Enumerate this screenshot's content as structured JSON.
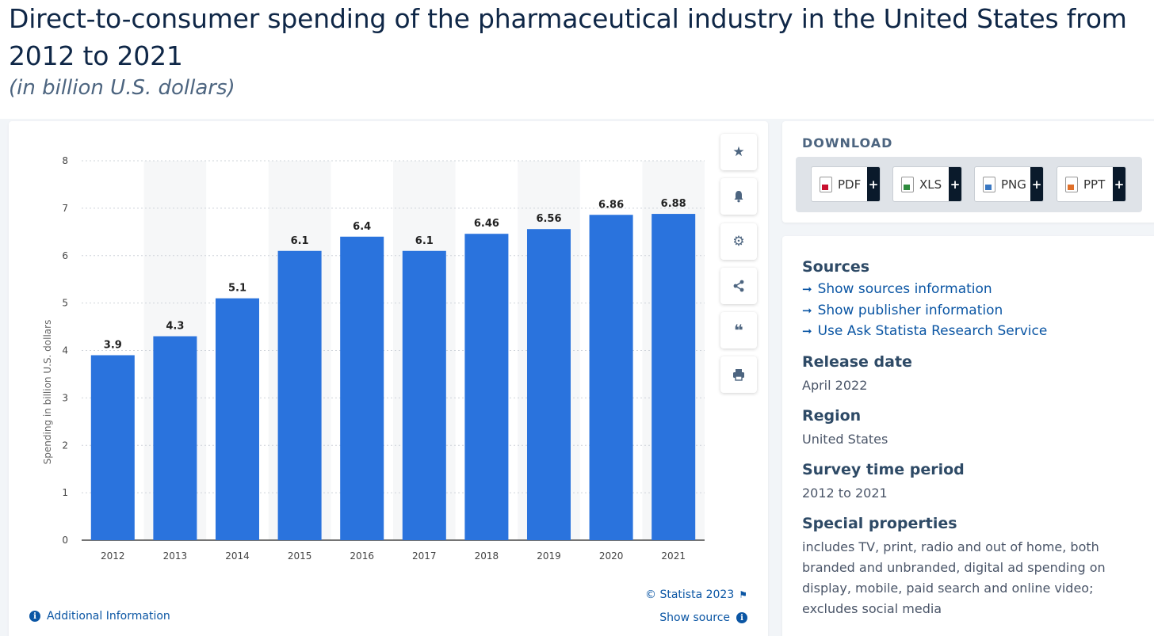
{
  "header": {
    "title": "Direct-to-consumer spending of the pharmaceutical industry in the United States from 2012 to 2021",
    "subtitle": "(in billion U.S. dollars)"
  },
  "chart_data": {
    "type": "bar",
    "categories": [
      "2012",
      "2013",
      "2014",
      "2015",
      "2016",
      "2017",
      "2018",
      "2019",
      "2020",
      "2021"
    ],
    "values": [
      3.9,
      4.3,
      5.1,
      6.1,
      6.4,
      6.1,
      6.46,
      6.56,
      6.86,
      6.88
    ],
    "value_labels": [
      "3.9",
      "4.3",
      "5.1",
      "6.1",
      "6.4",
      "6.1",
      "6.46",
      "6.56",
      "6.86",
      "6.88"
    ],
    "ylabel": "Spending in billion U.S. dollars",
    "ylim": [
      0,
      8
    ],
    "yticks": [
      "0",
      "1",
      "2",
      "3",
      "4",
      "5",
      "6",
      "7",
      "8"
    ],
    "bar_color": "#2a73dd",
    "grid": true
  },
  "toolbar": {
    "items": [
      "star-icon",
      "bell-icon",
      "gear-icon",
      "share-icon",
      "quote-icon",
      "print-icon"
    ]
  },
  "footer": {
    "credit": "© Statista 2023",
    "additional_info": "Additional Information",
    "show_source": "Show source"
  },
  "download": {
    "title": "DOWNLOAD",
    "buttons": [
      {
        "label": "PDF",
        "icon": "pdf-file-icon"
      },
      {
        "label": "XLS",
        "icon": "xls-file-icon"
      },
      {
        "label": "PNG",
        "icon": "png-file-icon"
      },
      {
        "label": "PPT",
        "icon": "ppt-file-icon"
      }
    ],
    "plus": "+"
  },
  "info": {
    "sources_heading": "Sources",
    "links": [
      "Show sources information",
      "Show publisher information",
      "Use Ask Statista Research Service"
    ],
    "release_heading": "Release date",
    "release_value": "April 2022",
    "region_heading": "Region",
    "region_value": "United States",
    "period_heading": "Survey time period",
    "period_value": "2012 to 2021",
    "special_heading": "Special properties",
    "special_value": "includes TV, print, radio and out of home, both branded and unbranded, digital ad spending on display, mobile, paid search and online video; excludes social media"
  },
  "colors": {
    "accent": "#0b56a4",
    "bar": "#2a73dd",
    "heading": "#0f2747"
  }
}
